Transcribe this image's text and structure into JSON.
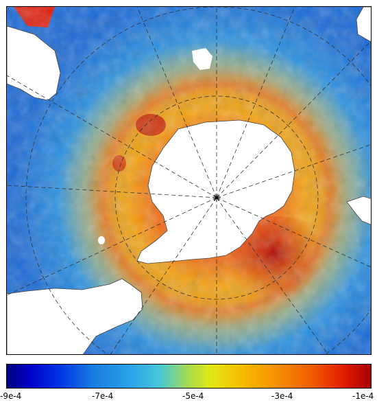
{
  "colorbar": {
    "tick_labels": [
      "-9e-4",
      "-7e-4",
      "-5e-4",
      "-3e-4",
      "-1e-4"
    ],
    "values": [
      -0.0009,
      -0.0007,
      -0.0005,
      -0.0003,
      -0.0001
    ],
    "range": [
      -0.0009,
      -0.0001
    ],
    "colormap": [
      "#00007f",
      "#0030e6",
      "#2aa3ea",
      "#a6dc4a",
      "#e2e614",
      "#f5c000",
      "#f69000",
      "#f05a00",
      "#a50000"
    ]
  },
  "map": {
    "projection": "south-polar-stereographic",
    "region": "Southern Ocean / Antarctica",
    "land_color": "#ffffff",
    "graticule_style": "dashed"
  }
}
